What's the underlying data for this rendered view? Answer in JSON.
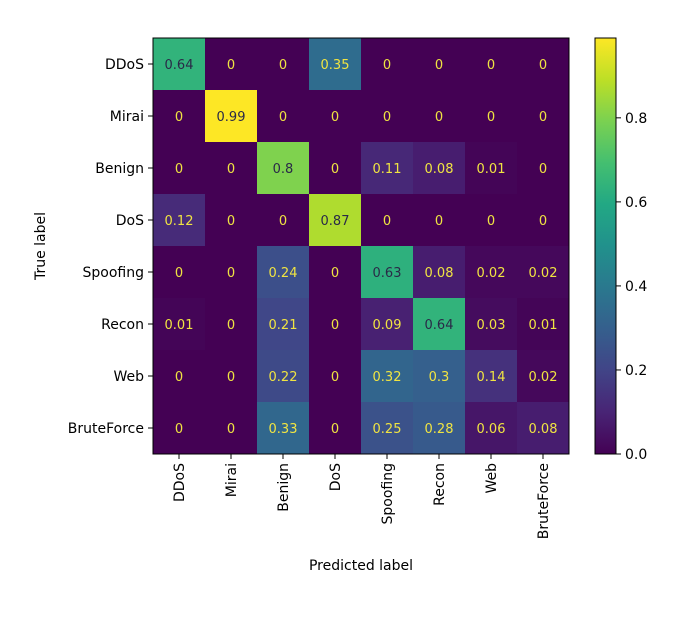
{
  "chart_data": {
    "type": "heatmap",
    "title": "",
    "xlabel": "Predicted label",
    "ylabel": "True label",
    "x_categories": [
      "DDoS",
      "Mirai",
      "Benign",
      "DoS",
      "Spoofing",
      "Recon",
      "Web",
      "BruteForce"
    ],
    "y_categories": [
      "DDoS",
      "Mirai",
      "Benign",
      "DoS",
      "Spoofing",
      "Recon",
      "Web",
      "BruteForce"
    ],
    "values": [
      [
        0.64,
        0,
        0,
        0.35,
        0,
        0,
        0,
        0
      ],
      [
        0,
        0.99,
        0,
        0,
        0,
        0,
        0,
        0
      ],
      [
        0,
        0,
        0.8,
        0,
        0.11,
        0.08,
        0.01,
        0
      ],
      [
        0.12,
        0,
        0,
        0.87,
        0,
        0,
        0,
        0
      ],
      [
        0,
        0,
        0.24,
        0,
        0.63,
        0.08,
        0.02,
        0.02
      ],
      [
        0.01,
        0,
        0.21,
        0,
        0.09,
        0.64,
        0.03,
        0.01
      ],
      [
        0,
        0,
        0.22,
        0,
        0.32,
        0.3,
        0.14,
        0.02
      ],
      [
        0,
        0,
        0.33,
        0,
        0.25,
        0.28,
        0.06,
        0.08
      ]
    ],
    "colormap": "viridis",
    "colorbar": {
      "range": [
        0,
        0.99
      ],
      "ticks": [
        0.0,
        0.2,
        0.4,
        0.6,
        0.8
      ],
      "tick_labels": [
        "0.0",
        "0.2",
        "0.4",
        "0.6",
        "0.8"
      ]
    },
    "grid": false,
    "legend": "colorbar-right"
  }
}
